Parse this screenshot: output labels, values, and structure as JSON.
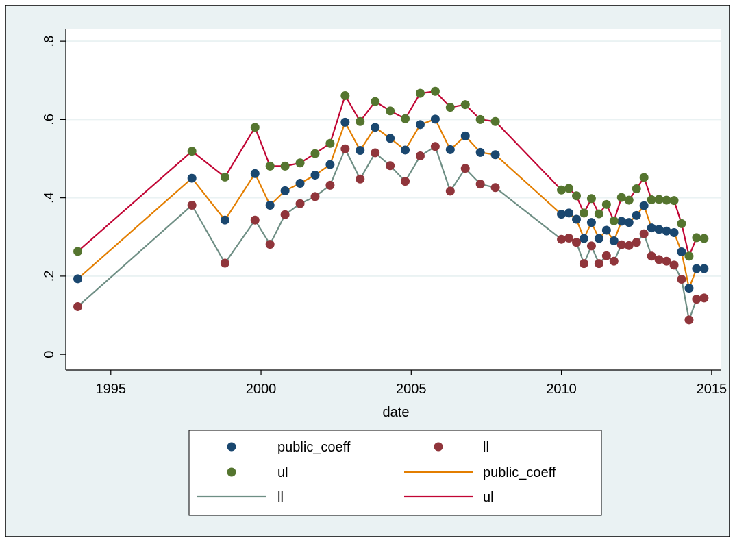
{
  "chart_data": {
    "type": "line",
    "xlabel": "date",
    "ylabel": "",
    "xlim": [
      1993.5,
      2015.3
    ],
    "ylim": [
      -0.04,
      0.83
    ],
    "xticks": [
      1995,
      2000,
      2005,
      2010,
      2015
    ],
    "xtick_labels": [
      "1995",
      "2000",
      "2005",
      "2010",
      "2015"
    ],
    "yticks": [
      0,
      0.2,
      0.4,
      0.6,
      0.8
    ],
    "ytick_labels": [
      "0",
      ".2",
      ".4",
      ".6",
      ".8"
    ],
    "grid": "horizontal",
    "legend_position": "bottom",
    "background_color": "#eaf2f3",
    "colors": {
      "public_coeff_marker": "#1a476f",
      "ll_marker": "#90353b",
      "ul_marker": "#55752f",
      "public_coeff_line": "#e37e00",
      "ll_line": "#6e8e84",
      "ul_line": "#c10534"
    },
    "x": [
      1993.9,
      1997.7,
      1998.8,
      1999.8,
      2000.3,
      2000.8,
      2001.3,
      2001.8,
      2002.3,
      2002.8,
      2003.3,
      2003.8,
      2004.3,
      2004.8,
      2005.3,
      2005.8,
      2006.3,
      2006.8,
      2007.3,
      2007.8,
      2010.0,
      2010.25,
      2010.5,
      2010.75,
      2011.0,
      2011.25,
      2011.5,
      2011.75,
      2012.0,
      2012.25,
      2012.5,
      2012.75,
      2013.0,
      2013.25,
      2013.5,
      2013.75,
      2014.0,
      2014.25,
      2014.5,
      2014.75
    ],
    "series": [
      {
        "name": "public_coeff",
        "style": "marker",
        "color_key": "public_coeff_marker",
        "values": [
          0.193,
          0.45,
          0.343,
          0.462,
          0.381,
          0.418,
          0.437,
          0.458,
          0.485,
          0.593,
          0.521,
          0.58,
          0.552,
          0.522,
          0.587,
          0.601,
          0.523,
          0.558,
          0.516,
          0.51,
          0.358,
          0.361,
          0.345,
          0.296,
          0.337,
          0.296,
          0.317,
          0.29,
          0.34,
          0.337,
          0.355,
          0.38,
          0.323,
          0.319,
          0.315,
          0.311,
          0.262,
          0.169,
          0.219,
          0.219
        ]
      },
      {
        "name": "ll",
        "style": "marker",
        "color_key": "ll_marker",
        "values": [
          0.122,
          0.381,
          0.233,
          0.343,
          0.281,
          0.357,
          0.385,
          0.403,
          0.432,
          0.525,
          0.448,
          0.515,
          0.482,
          0.442,
          0.507,
          0.531,
          0.417,
          0.475,
          0.435,
          0.426,
          0.294,
          0.297,
          0.286,
          0.232,
          0.277,
          0.232,
          0.252,
          0.238,
          0.28,
          0.278,
          0.286,
          0.308,
          0.251,
          0.242,
          0.238,
          0.228,
          0.192,
          0.088,
          0.141,
          0.144
        ]
      },
      {
        "name": "ul",
        "style": "marker",
        "color_key": "ul_marker",
        "values": [
          0.263,
          0.519,
          0.453,
          0.58,
          0.481,
          0.481,
          0.489,
          0.513,
          0.539,
          0.661,
          0.595,
          0.646,
          0.622,
          0.602,
          0.667,
          0.672,
          0.631,
          0.638,
          0.6,
          0.595,
          0.42,
          0.424,
          0.405,
          0.361,
          0.398,
          0.359,
          0.383,
          0.341,
          0.401,
          0.394,
          0.423,
          0.452,
          0.395,
          0.396,
          0.394,
          0.393,
          0.334,
          0.251,
          0.298,
          0.296
        ]
      },
      {
        "name": "public_coeff",
        "style": "line",
        "color_key": "public_coeff_line",
        "ref": 0
      },
      {
        "name": "ll",
        "style": "line",
        "color_key": "ll_line",
        "ref": 1
      },
      {
        "name": "ul",
        "style": "line",
        "color_key": "ul_line",
        "ref": 2
      }
    ]
  }
}
